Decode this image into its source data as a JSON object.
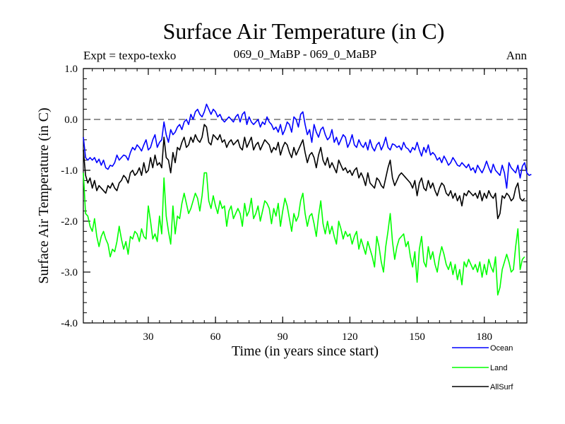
{
  "chart_data": {
    "type": "line",
    "title": "Surface Air Temperature (in C)",
    "subtitle_left": "Expt = texpo-texko",
    "subtitle_center": "069_0_MaBP - 069_0_MaBP",
    "subtitle_right": "Ann",
    "xlabel": "Time (in years since start)",
    "ylabel": "Surface Air Temperature (in C)",
    "xlim": [
      1,
      199
    ],
    "ylim": [
      -4.0,
      1.0
    ],
    "x_ticks": [
      30,
      60,
      90,
      120,
      150,
      180
    ],
    "x_tick_labels": [
      "30",
      "60",
      "90",
      "120",
      "150",
      "180"
    ],
    "y_ticks": [
      1.0,
      0.0,
      -1.0,
      -2.0,
      -3.0,
      -4.0
    ],
    "y_tick_labels": [
      "1.0",
      "0.0",
      "-1.0",
      "-2.0",
      "-3.0",
      "-4.0"
    ],
    "reference_line": 0.0,
    "series": [
      {
        "name": "Ocean",
        "color": "#0000ff",
        "values": [
          -0.35,
          -0.75,
          -0.8,
          -0.75,
          -0.8,
          -0.75,
          -0.85,
          -0.78,
          -0.9,
          -0.8,
          -0.95,
          -0.98,
          -0.9,
          -0.92,
          -0.85,
          -0.7,
          -0.8,
          -0.75,
          -0.7,
          -0.72,
          -0.8,
          -0.65,
          -0.55,
          -0.6,
          -0.5,
          -0.55,
          -0.62,
          -0.5,
          -0.4,
          -0.6,
          -0.55,
          -0.4,
          -0.3,
          -0.55,
          -0.45,
          -0.4,
          -0.05,
          -0.3,
          -0.45,
          -0.2,
          -0.3,
          -0.25,
          -0.15,
          -0.1,
          -0.2,
          -0.05,
          0.0,
          -0.1,
          0.1,
          0.0,
          0.15,
          0.2,
          0.1,
          0.05,
          0.15,
          0.3,
          0.2,
          0.1,
          0.2,
          0.15,
          0.05,
          0.1,
          0.0,
          -0.05,
          0.0,
          0.05,
          0.0,
          -0.05,
          0.05,
          0.1,
          -0.05,
          0.1,
          0.15,
          -0.1,
          0.05,
          -0.05,
          -0.1,
          -0.05,
          0.0,
          -0.15,
          -0.05,
          -0.1,
          0.05,
          -0.05,
          -0.1,
          -0.2,
          -0.15,
          -0.25,
          -0.1,
          -0.3,
          -0.2,
          -0.05,
          -0.1,
          -0.25,
          0.05,
          0.0,
          -0.15,
          0.1,
          0.15,
          -0.1,
          -0.3,
          -0.2,
          -0.45,
          -0.1,
          -0.25,
          -0.35,
          -0.2,
          -0.15,
          -0.3,
          -0.4,
          -0.35,
          -0.2,
          -0.45,
          -0.35,
          -0.5,
          -0.4,
          -0.3,
          -0.35,
          -0.55,
          -0.45,
          -0.3,
          -0.5,
          -0.55,
          -0.4,
          -0.5,
          -0.55,
          -0.45,
          -0.6,
          -0.4,
          -0.55,
          -0.62,
          -0.5,
          -0.45,
          -0.6,
          -0.5,
          -0.35,
          -0.55,
          -0.6,
          -0.48,
          -0.5,
          -0.55,
          -0.52,
          -0.6,
          -0.45,
          -0.55,
          -0.58,
          -0.65,
          -0.55,
          -0.6,
          -0.45,
          -0.6,
          -0.72,
          -0.55,
          -0.65,
          -0.5,
          -0.7,
          -0.65,
          -0.7,
          -0.8,
          -0.75,
          -0.85,
          -0.72,
          -0.8,
          -0.9,
          -0.85,
          -0.75,
          -0.82,
          -0.9,
          -0.92,
          -0.85,
          -0.9,
          -0.95,
          -0.88,
          -1.0,
          -0.95,
          -1.05,
          -0.9,
          -0.98,
          -1.05,
          -0.95,
          -0.82,
          -0.95,
          -1.05,
          -0.88,
          -1.0,
          -1.05,
          -1.1,
          -0.9,
          -1.05,
          -1.35,
          -0.85,
          -0.95,
          -1.0,
          -1.05,
          -0.9,
          -1.15,
          -0.92,
          -0.85,
          -1.05,
          -1.1,
          -1.08
        ]
      },
      {
        "name": "Land",
        "color": "#00ff00",
        "values": [
          -1.05,
          -1.85,
          -1.9,
          -2.1,
          -2.2,
          -1.95,
          -2.3,
          -2.5,
          -2.3,
          -2.2,
          -2.35,
          -2.45,
          -2.7,
          -2.55,
          -2.6,
          -2.4,
          -2.1,
          -2.35,
          -2.55,
          -2.4,
          -2.65,
          -2.3,
          -2.35,
          -2.2,
          -2.25,
          -2.4,
          -2.15,
          -2.3,
          -2.35,
          -1.7,
          -2.0,
          -2.35,
          -2.25,
          -2.4,
          -1.9,
          -2.25,
          -1.15,
          -1.9,
          -2.2,
          -2.45,
          -1.7,
          -2.25,
          -1.9,
          -1.95,
          -1.65,
          -1.45,
          -1.65,
          -1.85,
          -1.75,
          -1.6,
          -1.45,
          -1.55,
          -1.8,
          -1.5,
          -1.05,
          -1.05,
          -1.6,
          -1.75,
          -1.5,
          -1.7,
          -1.85,
          -1.6,
          -1.75,
          -1.7,
          -2.1,
          -1.8,
          -1.7,
          -1.95,
          -1.85,
          -1.75,
          -1.85,
          -2.1,
          -1.65,
          -1.9,
          -1.8,
          -1.55,
          -1.95,
          -1.85,
          -1.7,
          -2.0,
          -1.8,
          -1.6,
          -1.65,
          -1.75,
          -2.05,
          -1.75,
          -1.9,
          -1.65,
          -2.1,
          -1.8,
          -1.55,
          -1.7,
          -1.95,
          -2.2,
          -1.85,
          -2.0,
          -1.9,
          -1.6,
          -1.45,
          -1.85,
          -2.1,
          -1.9,
          -1.85,
          -2.05,
          -2.3,
          -1.9,
          -1.6,
          -2.05,
          -2.25,
          -2.0,
          -2.25,
          -2.1,
          -2.3,
          -2.45,
          -2.0,
          -2.15,
          -2.35,
          -2.2,
          -2.3,
          -2.25,
          -2.45,
          -2.3,
          -2.2,
          -2.55,
          -2.35,
          -2.5,
          -2.65,
          -2.4,
          -2.55,
          -2.7,
          -2.9,
          -2.3,
          -2.5,
          -2.8,
          -3.0,
          -2.5,
          -2.2,
          -1.85,
          -2.4,
          -2.75,
          -2.5,
          -2.35,
          -2.3,
          -2.25,
          -2.5,
          -2.4,
          -2.7,
          -2.9,
          -2.6,
          -3.2,
          -2.55,
          -2.3,
          -2.8,
          -2.9,
          -2.5,
          -2.75,
          -2.6,
          -2.85,
          -3.0,
          -2.7,
          -2.5,
          -2.65,
          -2.85,
          -2.95,
          -2.8,
          -3.05,
          -2.85,
          -3.15,
          -2.95,
          -3.25,
          -2.8,
          -2.9,
          -2.75,
          -2.85,
          -2.95,
          -2.85,
          -3.0,
          -2.8,
          -3.1,
          -2.85,
          -3.05,
          -2.75,
          -2.9,
          -3.0,
          -2.7,
          -3.45,
          -3.3,
          -2.95,
          -2.8,
          -2.65,
          -2.8,
          -3.0,
          -2.95,
          -2.5,
          -2.15,
          -2.95,
          -2.75,
          -2.7
        ]
      },
      {
        "name": "AllSurf",
        "color": "#000000",
        "values": [
          -0.6,
          -1.1,
          -1.25,
          -1.15,
          -1.35,
          -1.2,
          -1.4,
          -1.3,
          -1.35,
          -1.4,
          -1.45,
          -1.3,
          -1.35,
          -1.25,
          -1.35,
          -1.4,
          -1.25,
          -1.2,
          -1.1,
          -1.15,
          -1.25,
          -1.05,
          -1.0,
          -1.1,
          -1.05,
          -0.95,
          -1.1,
          -0.85,
          -1.05,
          -1.0,
          -0.75,
          -0.95,
          -0.7,
          -0.9,
          -0.85,
          -0.95,
          -0.35,
          -0.75,
          -0.8,
          -1.05,
          -0.65,
          -0.85,
          -0.55,
          -0.6,
          -0.45,
          -0.35,
          -0.55,
          -0.5,
          -0.35,
          -0.45,
          -0.3,
          -0.4,
          -0.45,
          -0.35,
          -0.1,
          -0.15,
          -0.45,
          -0.5,
          -0.3,
          -0.35,
          -0.4,
          -0.3,
          -0.45,
          -0.4,
          -0.55,
          -0.45,
          -0.4,
          -0.5,
          -0.45,
          -0.4,
          -0.55,
          -0.6,
          -0.35,
          -0.55,
          -0.45,
          -0.35,
          -0.6,
          -0.5,
          -0.45,
          -0.6,
          -0.5,
          -0.4,
          -0.45,
          -0.5,
          -0.65,
          -0.55,
          -0.6,
          -0.45,
          -0.7,
          -0.55,
          -0.45,
          -0.5,
          -0.65,
          -0.75,
          -0.55,
          -0.7,
          -0.6,
          -0.5,
          -0.4,
          -0.65,
          -0.85,
          -0.7,
          -0.65,
          -0.75,
          -0.95,
          -0.7,
          -0.55,
          -0.8,
          -0.9,
          -0.75,
          -0.95,
          -0.85,
          -0.95,
          -1.05,
          -0.8,
          -0.9,
          -1.0,
          -0.95,
          -1.05,
          -1.0,
          -1.1,
          -1.0,
          -0.95,
          -1.15,
          -1.05,
          -1.15,
          -1.3,
          -1.05,
          -1.25,
          -1.3,
          -1.35,
          -1.15,
          -1.2,
          -1.3,
          -1.35,
          -1.15,
          -0.95,
          -0.8,
          -1.15,
          -1.3,
          -1.2,
          -1.1,
          -1.05,
          -1.1,
          -1.15,
          -1.2,
          -1.25,
          -1.35,
          -1.2,
          -1.5,
          -1.25,
          -1.15,
          -1.35,
          -1.4,
          -1.2,
          -1.35,
          -1.25,
          -1.4,
          -1.5,
          -1.35,
          -1.25,
          -1.3,
          -1.45,
          -1.5,
          -1.4,
          -1.55,
          -1.45,
          -1.6,
          -1.5,
          -1.7,
          -1.45,
          -1.5,
          -1.4,
          -1.45,
          -1.5,
          -1.45,
          -1.55,
          -1.4,
          -1.6,
          -1.45,
          -1.55,
          -1.4,
          -1.5,
          -1.55,
          -1.45,
          -1.95,
          -1.85,
          -1.5,
          -1.55,
          -1.45,
          -1.5,
          -1.6,
          -1.55,
          -1.35,
          -1.25,
          -1.55,
          -1.6,
          -1.55
        ]
      }
    ],
    "legend_placement": "bottom-right"
  }
}
